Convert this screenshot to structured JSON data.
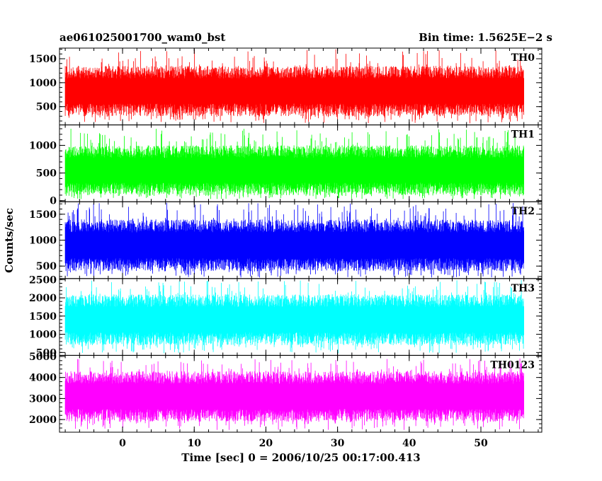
{
  "header": {
    "left_title": "ae061025001700_wam0_bst",
    "right_title": "Bin time: 1.5625E−2 s"
  },
  "chart_data": {
    "type": "line",
    "title": "ae061025001700_wam0_bst",
    "subtitle": "Bin time: 1.5625E−2 s",
    "xlabel": "Time [sec] 0 = 2006/10/25 00:17:00.413",
    "ylabel": "Counts/sec",
    "xlim": [
      -8.8,
      58.5
    ],
    "data_x_range": [
      -8.0,
      56.0
    ],
    "x_ticks": [
      0,
      10,
      20,
      30,
      40,
      50
    ],
    "x_tick_labels": [
      "0",
      "10",
      "20",
      "30",
      "40",
      "50"
    ],
    "grid": false,
    "panels": [
      {
        "name": "TH0",
        "color": "#ff0000",
        "ylim": [
          140,
          1700
        ],
        "y_ticks": [
          500,
          1000,
          1500
        ],
        "y_tick_labels": [
          "500",
          "1000",
          "1500"
        ],
        "typical_range": [
          300,
          1350
        ],
        "min": 150,
        "max": 1700
      },
      {
        "name": "TH1",
        "color": "#00ff00",
        "ylim": [
          0,
          1350
        ],
        "y_ticks": [
          0,
          500,
          1000
        ],
        "y_tick_labels": [
          "0",
          "500",
          "1000"
        ],
        "typical_range": [
          100,
          1000
        ],
        "min": 30,
        "max": 1300
      },
      {
        "name": "TH2",
        "color": "#0000ff",
        "ylim": [
          280,
          1720
        ],
        "y_ticks": [
          500,
          1000,
          1500
        ],
        "y_tick_labels": [
          "500",
          "1000",
          "1500"
        ],
        "typical_range": [
          400,
          1400
        ],
        "min": 280,
        "max": 1720
      },
      {
        "name": "TH3",
        "color": "#00ffff",
        "ylim": [
          450,
          2500
        ],
        "y_ticks": [
          500,
          1000,
          1500,
          2000,
          2500
        ],
        "y_tick_labels": [
          "500",
          "1000",
          "1500",
          "2000",
          "2500"
        ],
        "typical_range": [
          700,
          2100
        ],
        "min": 480,
        "max": 2500
      },
      {
        "name": "TH0123",
        "color": "#ff00ff",
        "ylim": [
          1450,
          5000
        ],
        "y_ticks": [
          2000,
          3000,
          4000,
          5000
        ],
        "y_tick_labels": [
          "2000",
          "3000",
          "4000",
          "5000"
        ],
        "typical_range": [
          1900,
          4300
        ],
        "min": 1500,
        "max": 4900
      }
    ]
  }
}
